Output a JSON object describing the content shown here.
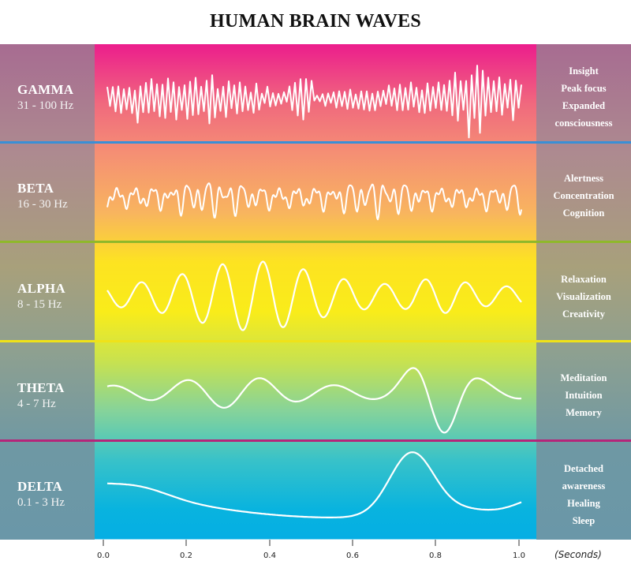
{
  "title": "HUMAN BRAIN WAVES",
  "colors": {
    "gamma_line": "#3a8fd6",
    "beta_line": "#8fb82a",
    "alpha_line": "#f0e218",
    "theta_line": "#b5257a",
    "wave_stroke": "#ffffff"
  },
  "bands": [
    {
      "name": "GAMMA",
      "freq": "31 - 100 Hz",
      "descriptions": [
        "Insight",
        "Peak focus",
        "Expanded",
        "consciousness"
      ]
    },
    {
      "name": "BETA",
      "freq": "16 - 30 Hz",
      "descriptions": [
        "Alertness",
        "Concentration",
        "Cognition"
      ]
    },
    {
      "name": "ALPHA",
      "freq": "8 - 15 Hz",
      "descriptions": [
        "Relaxation",
        "Visualization",
        "Creativity"
      ]
    },
    {
      "name": "THETA",
      "freq": "4 - 7 Hz",
      "descriptions": [
        "Meditation",
        "Intuition",
        "Memory"
      ]
    },
    {
      "name": "DELTA",
      "freq": "0.1 - 3 Hz",
      "descriptions": [
        "Detached",
        "awareness",
        "Healing",
        "Sleep"
      ]
    }
  ],
  "axis": {
    "ticks": [
      "0.0",
      "0.2",
      "0.4",
      "0.6",
      "0.8",
      "1.0"
    ],
    "unit": "(Seconds)"
  }
}
